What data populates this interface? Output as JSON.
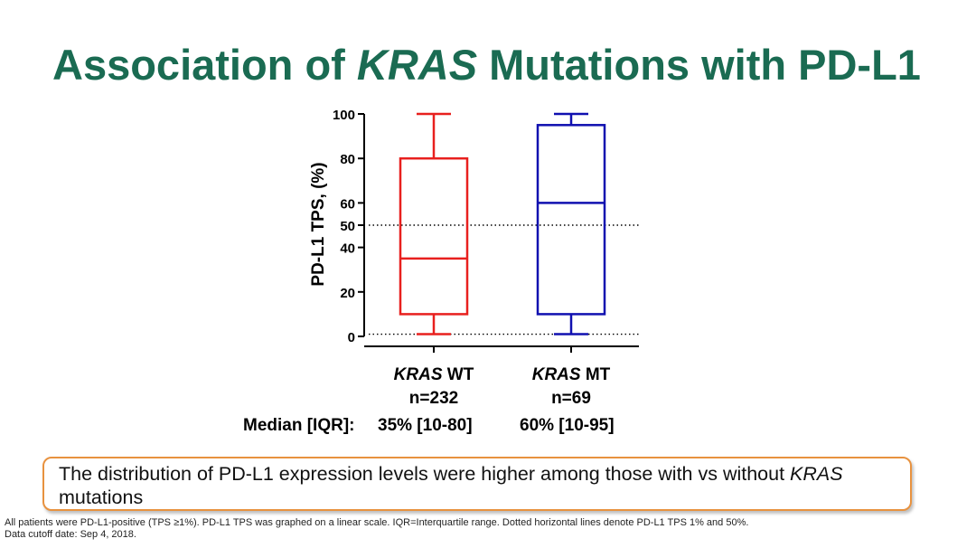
{
  "title": {
    "part1": "Association of ",
    "italic": "KRAS",
    "part2": " Mutations with PD-L1"
  },
  "chart_data": {
    "type": "box",
    "ylabel": "PD-L1 TPS, (%)",
    "ylim": [
      0,
      100
    ],
    "yticks": [
      0,
      20,
      40,
      50,
      60,
      80,
      100
    ],
    "reference_lines": [
      1,
      50
    ],
    "reference_line_style": "dotted",
    "grid": false,
    "categories": [
      {
        "gene": "KRAS",
        "suffix": " WT",
        "n_label": "n=232",
        "color": "#e8201e",
        "min": 1,
        "q1": 10,
        "median": 35,
        "q3": 80,
        "max": 100
      },
      {
        "gene": "KRAS",
        "suffix": " MT",
        "n_label": "n=69",
        "color": "#1010b0",
        "min": 1,
        "q1": 10,
        "median": 60,
        "q3": 95,
        "max": 100
      }
    ]
  },
  "median_row": {
    "label": "Median [IQR]:",
    "values": [
      "35% [10-80]",
      "60% [10-95]"
    ]
  },
  "callout": {
    "text_main": "The distribution of PD-L1 expression levels were higher among those with vs without ",
    "text_italic": "KRAS",
    "text_end": " mutations"
  },
  "footnote": {
    "line1": "All patients were PD-L1-positive (TPS ≥1%). PD-L1 TPS was graphed on a linear scale. IQR=Interquartile range.  Dotted horizontal lines denote PD-L1 TPS 1% and 50%.",
    "line2": "Data cutoff date: Sep 4, 2018."
  }
}
